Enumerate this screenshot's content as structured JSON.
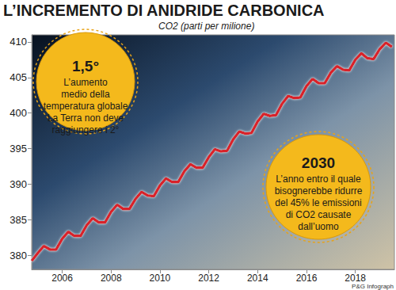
{
  "chart_data": {
    "type": "line",
    "title": "L’INCREMENTO DI ANIDRIDE CARBONICA",
    "subtitle": "CO2 (parti per milione)",
    "x": [
      2004.75,
      2005.0,
      2005.25,
      2005.5,
      2005.75,
      2006.0,
      2006.25,
      2006.5,
      2006.75,
      2007.0,
      2007.25,
      2007.5,
      2007.75,
      2008.0,
      2008.25,
      2008.5,
      2008.75,
      2009.0,
      2009.25,
      2009.5,
      2009.75,
      2010.0,
      2010.25,
      2010.5,
      2010.75,
      2011.0,
      2011.25,
      2011.5,
      2011.75,
      2012.0,
      2012.25,
      2012.5,
      2012.75,
      2013.0,
      2013.25,
      2013.5,
      2013.75,
      2014.0,
      2014.25,
      2014.5,
      2014.75,
      2015.0,
      2015.25,
      2015.5,
      2015.75,
      2016.0,
      2016.25,
      2016.5,
      2016.75,
      2017.0,
      2017.25,
      2017.5,
      2017.75,
      2018.0,
      2018.25,
      2018.5,
      2018.75,
      2019.0,
      2019.25,
      2019.5
    ],
    "values": [
      379.2,
      380.3,
      381.3,
      380.8,
      380.8,
      382.3,
      383.3,
      382.7,
      382.7,
      384.2,
      385.2,
      384.6,
      384.6,
      386.1,
      387.1,
      386.5,
      386.5,
      387.9,
      388.9,
      388.4,
      388.3,
      389.8,
      390.8,
      390.3,
      390.3,
      391.8,
      392.8,
      392.3,
      392.3,
      393.8,
      394.9,
      394.6,
      394.7,
      396.3,
      397.4,
      397.1,
      397.2,
      398.8,
      399.9,
      399.6,
      399.7,
      401.3,
      402.4,
      402.1,
      402.2,
      403.8,
      404.8,
      404.2,
      404.2,
      405.7,
      406.6,
      406.1,
      406.0,
      407.5,
      408.4,
      407.7,
      407.6,
      409.0,
      409.9,
      409.3
    ],
    "color": "#d8232a",
    "xlim": [
      2004.75,
      2019.6
    ],
    "ylim": [
      378,
      411
    ],
    "xticks": [
      2006,
      2008,
      2010,
      2012,
      2014,
      2016,
      2018
    ],
    "yticks": [
      380,
      385,
      390,
      395,
      400,
      405,
      410
    ],
    "grid": false,
    "annotations": [
      {
        "title": "1,5°",
        "text": [
          "L’aumento",
          "medio della",
          "temperatura globale",
          "La Terra non deve",
          "raggiungere i 2°"
        ]
      },
      {
        "title": "2030",
        "text": [
          "L’anno entro il quale",
          "bisognerebbe ridurre",
          "del 45% le emissioni",
          "di CO2 causate",
          "dall’uomo"
        ]
      }
    ],
    "source": "P&G Infograph"
  }
}
